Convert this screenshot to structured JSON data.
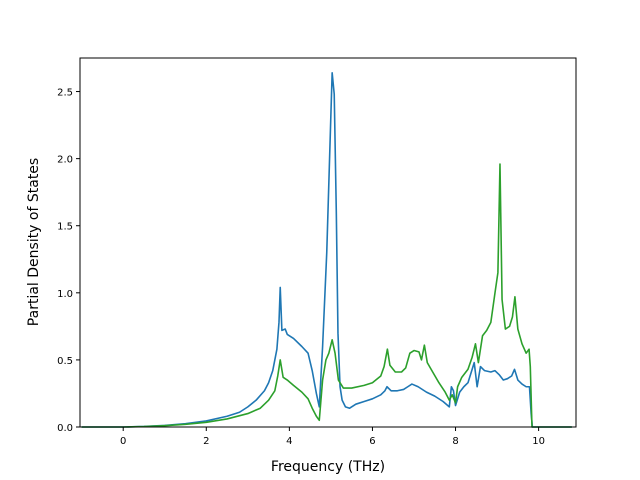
{
  "chart_data": {
    "type": "line",
    "title": "",
    "xlabel": "Frequency (THz)",
    "ylabel": "Partial Density of States",
    "xlim": [
      -1.04,
      10.9
    ],
    "ylim": [
      0,
      2.75
    ],
    "xticks": [
      0,
      2,
      4,
      6,
      8,
      10
    ],
    "xtick_labels": [
      "0",
      "2",
      "4",
      "6",
      "8",
      "10"
    ],
    "yticks": [
      0,
      0.5,
      1.0,
      1.5,
      2.0,
      2.5
    ],
    "ytick_labels": [
      "0.0",
      "0.5",
      "1.0",
      "1.5",
      "2.0",
      "2.5"
    ],
    "grid": false,
    "legend": "none",
    "series": [
      {
        "color": "#1f77b4",
        "points": [
          [
            -1.0,
            0.0
          ],
          [
            0.0,
            0.0
          ],
          [
            0.5,
            0.004
          ],
          [
            1.0,
            0.012
          ],
          [
            1.5,
            0.025
          ],
          [
            2.0,
            0.045
          ],
          [
            2.5,
            0.08
          ],
          [
            2.8,
            0.11
          ],
          [
            3.0,
            0.15
          ],
          [
            3.2,
            0.2
          ],
          [
            3.4,
            0.27
          ],
          [
            3.5,
            0.33
          ],
          [
            3.6,
            0.42
          ],
          [
            3.7,
            0.58
          ],
          [
            3.75,
            0.78
          ],
          [
            3.78,
            1.04
          ],
          [
            3.82,
            0.72
          ],
          [
            3.9,
            0.73
          ],
          [
            3.95,
            0.69
          ],
          [
            4.1,
            0.66
          ],
          [
            4.3,
            0.6
          ],
          [
            4.45,
            0.55
          ],
          [
            4.55,
            0.42
          ],
          [
            4.65,
            0.25
          ],
          [
            4.72,
            0.15
          ],
          [
            4.8,
            0.6
          ],
          [
            4.9,
            1.3
          ],
          [
            5.03,
            2.64
          ],
          [
            5.08,
            2.48
          ],
          [
            5.13,
            1.6
          ],
          [
            5.17,
            0.7
          ],
          [
            5.22,
            0.3
          ],
          [
            5.27,
            0.2
          ],
          [
            5.35,
            0.15
          ],
          [
            5.45,
            0.14
          ],
          [
            5.6,
            0.17
          ],
          [
            5.8,
            0.19
          ],
          [
            6.0,
            0.21
          ],
          [
            6.2,
            0.24
          ],
          [
            6.3,
            0.27
          ],
          [
            6.35,
            0.3
          ],
          [
            6.45,
            0.27
          ],
          [
            6.6,
            0.27
          ],
          [
            6.75,
            0.28
          ],
          [
            6.85,
            0.3
          ],
          [
            6.95,
            0.32
          ],
          [
            7.1,
            0.3
          ],
          [
            7.3,
            0.26
          ],
          [
            7.5,
            0.23
          ],
          [
            7.7,
            0.19
          ],
          [
            7.85,
            0.15
          ],
          [
            7.9,
            0.3
          ],
          [
            7.95,
            0.27
          ],
          [
            8.0,
            0.16
          ],
          [
            8.1,
            0.26
          ],
          [
            8.2,
            0.3
          ],
          [
            8.3,
            0.33
          ],
          [
            8.45,
            0.48
          ],
          [
            8.52,
            0.3
          ],
          [
            8.6,
            0.45
          ],
          [
            8.7,
            0.42
          ],
          [
            8.85,
            0.41
          ],
          [
            8.95,
            0.42
          ],
          [
            9.05,
            0.39
          ],
          [
            9.15,
            0.35
          ],
          [
            9.25,
            0.36
          ],
          [
            9.35,
            0.38
          ],
          [
            9.42,
            0.43
          ],
          [
            9.5,
            0.35
          ],
          [
            9.6,
            0.32
          ],
          [
            9.7,
            0.3
          ],
          [
            9.78,
            0.3
          ],
          [
            9.82,
            0.1
          ],
          [
            9.85,
            0.0
          ],
          [
            10.8,
            0.0
          ]
        ]
      },
      {
        "color": "#2ca02c",
        "points": [
          [
            -1.0,
            0.0
          ],
          [
            0.0,
            0.0
          ],
          [
            0.5,
            0.003
          ],
          [
            1.0,
            0.01
          ],
          [
            1.5,
            0.02
          ],
          [
            2.0,
            0.035
          ],
          [
            2.5,
            0.06
          ],
          [
            3.0,
            0.1
          ],
          [
            3.3,
            0.14
          ],
          [
            3.5,
            0.2
          ],
          [
            3.65,
            0.27
          ],
          [
            3.72,
            0.38
          ],
          [
            3.78,
            0.5
          ],
          [
            3.85,
            0.37
          ],
          [
            3.95,
            0.35
          ],
          [
            4.1,
            0.31
          ],
          [
            4.3,
            0.26
          ],
          [
            4.45,
            0.21
          ],
          [
            4.55,
            0.14
          ],
          [
            4.65,
            0.08
          ],
          [
            4.72,
            0.05
          ],
          [
            4.8,
            0.35
          ],
          [
            4.88,
            0.5
          ],
          [
            4.95,
            0.55
          ],
          [
            5.03,
            0.65
          ],
          [
            5.1,
            0.55
          ],
          [
            5.18,
            0.35
          ],
          [
            5.3,
            0.29
          ],
          [
            5.5,
            0.29
          ],
          [
            5.8,
            0.31
          ],
          [
            6.0,
            0.33
          ],
          [
            6.2,
            0.38
          ],
          [
            6.28,
            0.45
          ],
          [
            6.36,
            0.58
          ],
          [
            6.42,
            0.46
          ],
          [
            6.55,
            0.41
          ],
          [
            6.7,
            0.41
          ],
          [
            6.8,
            0.44
          ],
          [
            6.9,
            0.55
          ],
          [
            7.0,
            0.57
          ],
          [
            7.12,
            0.56
          ],
          [
            7.18,
            0.5
          ],
          [
            7.25,
            0.61
          ],
          [
            7.32,
            0.48
          ],
          [
            7.45,
            0.41
          ],
          [
            7.6,
            0.33
          ],
          [
            7.75,
            0.26
          ],
          [
            7.85,
            0.2
          ],
          [
            7.92,
            0.24
          ],
          [
            8.0,
            0.18
          ],
          [
            8.05,
            0.3
          ],
          [
            8.15,
            0.37
          ],
          [
            8.3,
            0.43
          ],
          [
            8.4,
            0.52
          ],
          [
            8.48,
            0.62
          ],
          [
            8.55,
            0.48
          ],
          [
            8.65,
            0.68
          ],
          [
            8.75,
            0.72
          ],
          [
            8.85,
            0.78
          ],
          [
            8.95,
            1.0
          ],
          [
            9.02,
            1.15
          ],
          [
            9.07,
            1.96
          ],
          [
            9.12,
            0.95
          ],
          [
            9.2,
            0.73
          ],
          [
            9.3,
            0.75
          ],
          [
            9.37,
            0.82
          ],
          [
            9.43,
            0.97
          ],
          [
            9.5,
            0.73
          ],
          [
            9.6,
            0.62
          ],
          [
            9.7,
            0.55
          ],
          [
            9.77,
            0.58
          ],
          [
            9.8,
            0.45
          ],
          [
            9.84,
            0.0
          ],
          [
            10.8,
            0.0
          ]
        ]
      }
    ]
  }
}
